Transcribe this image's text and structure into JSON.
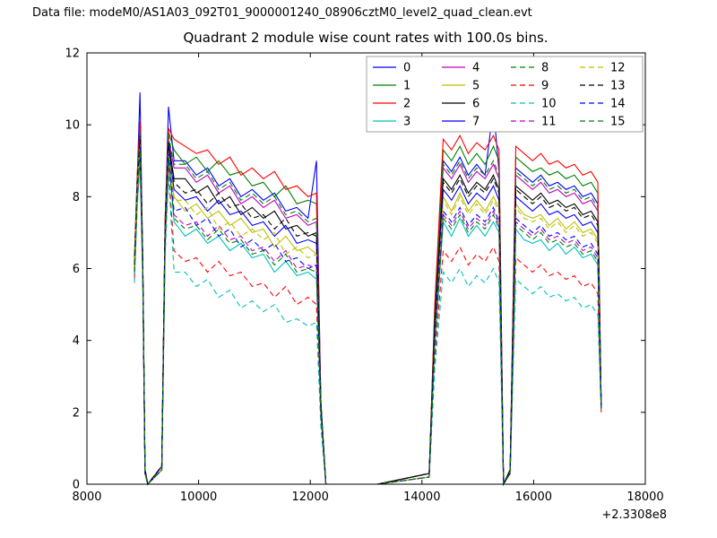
{
  "page": {
    "data_file_label": "Data file: modeM0/AS1A03_092T01_9000001240_08906cztM0_level2_quad_clean.evt"
  },
  "chart_data": {
    "type": "line",
    "title": "Quadrant 2 module wise count rates with 100.0s bins.",
    "xlabel": "",
    "ylabel": "",
    "xlim": [
      8000,
      18000
    ],
    "ylim": [
      0,
      12
    ],
    "x_ticks": [
      8000,
      10000,
      12000,
      14000,
      16000,
      18000
    ],
    "y_ticks": [
      0,
      2,
      4,
      6,
      8,
      10,
      12
    ],
    "x_offset_text": "+2.3308e8",
    "grid": false,
    "legend": {
      "position": "upper center",
      "columns": 4,
      "rows": 4
    },
    "colors": {
      "blue": "#0000ff",
      "green": "#008000",
      "red": "#ff0000",
      "cyan": "#00bfbf",
      "magenta": "#bf00bf",
      "yellow": "#bfbf00",
      "black": "#000000"
    },
    "x": [
      8850,
      8900,
      8950,
      9000,
      9040,
      9090,
      9340,
      9400,
      9460,
      9560,
      9760,
      9960,
      10160,
      10360,
      10560,
      10760,
      10960,
      11160,
      11360,
      11560,
      11760,
      11960,
      12110,
      12190,
      12280,
      13200,
      14130,
      14230,
      14380,
      14530,
      14680,
      14830,
      14980,
      15130,
      15280,
      15380,
      15460,
      15580,
      15680,
      15830,
      15980,
      16130,
      16280,
      16430,
      16580,
      16730,
      16880,
      17030,
      17150,
      17210
    ],
    "series": [
      {
        "name": "0",
        "color": "#0000ff",
        "style": "solid",
        "values": [
          6.2,
          8.5,
          10.9,
          6.2,
          0.4,
          0,
          0.5,
          7.2,
          10.5,
          9.0,
          9.0,
          8.6,
          8.8,
          8.3,
          8.5,
          8.0,
          8.2,
          7.9,
          8.1,
          7.6,
          7.7,
          7.4,
          9.0,
          2.3,
          0,
          0,
          0.3,
          4.7,
          9.0,
          8.7,
          9.1,
          8.6,
          8.9,
          8.6,
          10.5,
          8.7,
          0,
          0.4,
          8.8,
          8.6,
          8.4,
          8.6,
          8.3,
          8.4,
          8.2,
          8.3,
          8.0,
          8.1,
          7.8,
          2.2
        ]
      },
      {
        "name": "1",
        "color": "#008000",
        "style": "solid",
        "values": [
          6.2,
          8.5,
          9.9,
          6.2,
          0.4,
          0,
          0.5,
          7.3,
          9.8,
          9.3,
          8.9,
          9.1,
          8.7,
          9.0,
          8.6,
          8.7,
          8.3,
          8.4,
          8.0,
          8.3,
          7.8,
          7.9,
          7.8,
          2.3,
          0,
          0,
          0.3,
          4.9,
          9.3,
          9.0,
          9.4,
          8.9,
          9.2,
          8.9,
          9.4,
          9.0,
          0,
          0.4,
          9.1,
          8.9,
          8.7,
          8.8,
          8.6,
          8.7,
          8.5,
          8.6,
          8.3,
          8.4,
          8.1,
          2.2
        ]
      },
      {
        "name": "2",
        "color": "#ff0000",
        "style": "solid",
        "values": [
          6.3,
          8.6,
          10.1,
          6.3,
          0.4,
          0,
          0.5,
          7.4,
          9.9,
          9.6,
          9.4,
          9.2,
          9.3,
          8.9,
          9.1,
          8.6,
          8.8,
          8.5,
          8.7,
          8.2,
          8.3,
          8.0,
          8.1,
          2.3,
          0,
          0,
          0.3,
          5.0,
          9.6,
          9.3,
          9.7,
          9.2,
          9.5,
          9.3,
          9.7,
          9.3,
          0,
          0.4,
          9.4,
          9.2,
          9.0,
          9.2,
          8.9,
          9.0,
          8.8,
          8.9,
          8.6,
          8.7,
          8.4,
          2.2
        ]
      },
      {
        "name": "3",
        "color": "#00bfbf",
        "style": "solid",
        "values": [
          5.8,
          8.0,
          9.3,
          5.8,
          0.3,
          0,
          0.4,
          6.7,
          9.1,
          7.3,
          6.9,
          7.1,
          6.7,
          6.9,
          6.5,
          6.7,
          6.3,
          6.4,
          5.9,
          6.2,
          5.8,
          5.9,
          5.7,
          2.0,
          0,
          0,
          0.2,
          3.8,
          7.3,
          6.9,
          7.4,
          6.9,
          7.2,
          6.9,
          7.3,
          7.0,
          0,
          0.3,
          7.1,
          6.8,
          6.7,
          6.8,
          6.5,
          6.7,
          6.4,
          6.6,
          6.3,
          6.4,
          6.1,
          2.1
        ]
      },
      {
        "name": "4",
        "color": "#bf00bf",
        "style": "solid",
        "values": [
          6.1,
          8.4,
          9.8,
          6.1,
          0.4,
          0,
          0.5,
          7.2,
          9.6,
          8.8,
          8.8,
          8.4,
          8.6,
          8.1,
          8.3,
          7.8,
          8.0,
          7.7,
          7.9,
          7.4,
          7.5,
          7.2,
          7.3,
          2.2,
          0,
          0,
          0.3,
          4.6,
          8.8,
          8.5,
          8.9,
          8.4,
          8.7,
          8.5,
          8.9,
          8.5,
          0,
          0.4,
          8.6,
          8.4,
          8.2,
          8.4,
          8.1,
          8.2,
          8.0,
          8.1,
          7.8,
          7.9,
          7.6,
          2.2
        ]
      },
      {
        "name": "5",
        "color": "#bfbf00",
        "style": "solid",
        "values": [
          6.0,
          8.2,
          9.5,
          6.0,
          0.3,
          0,
          0.4,
          6.9,
          9.3,
          8.0,
          7.6,
          7.8,
          7.4,
          7.6,
          7.2,
          7.4,
          7.0,
          7.1,
          6.6,
          6.9,
          6.5,
          6.6,
          6.4,
          2.1,
          0,
          0,
          0.2,
          4.2,
          8.0,
          7.6,
          8.1,
          7.6,
          7.9,
          7.6,
          8.0,
          7.7,
          0,
          0.3,
          7.8,
          7.5,
          7.4,
          7.5,
          7.2,
          7.4,
          7.1,
          7.3,
          7.0,
          7.1,
          6.8,
          2.1
        ]
      },
      {
        "name": "6",
        "color": "#000000",
        "style": "solid",
        "values": [
          6.1,
          8.3,
          9.7,
          6.1,
          0.4,
          0,
          0.5,
          7.1,
          9.5,
          8.5,
          8.5,
          8.1,
          8.3,
          7.8,
          8.0,
          7.5,
          7.7,
          7.4,
          7.6,
          7.1,
          7.2,
          6.9,
          7.0,
          2.2,
          0,
          0,
          0.3,
          4.5,
          8.5,
          8.2,
          8.6,
          8.1,
          8.4,
          8.2,
          8.6,
          8.2,
          0,
          0.4,
          8.3,
          8.1,
          7.9,
          8.1,
          7.8,
          7.9,
          7.7,
          7.8,
          7.5,
          7.6,
          7.3,
          2.2
        ]
      },
      {
        "name": "7",
        "color": "#0000ff",
        "style": "solid",
        "values": [
          6.0,
          8.3,
          9.6,
          6.0,
          0.3,
          0,
          0.4,
          7.0,
          9.4,
          8.2,
          7.9,
          8.0,
          7.6,
          7.9,
          7.5,
          7.6,
          7.2,
          7.3,
          6.9,
          7.2,
          6.7,
          6.8,
          6.7,
          2.1,
          0,
          0,
          0.2,
          4.3,
          8.2,
          7.9,
          8.3,
          7.8,
          8.1,
          7.9,
          8.3,
          7.9,
          0,
          0.3,
          8.0,
          7.8,
          7.6,
          7.8,
          7.5,
          7.6,
          7.4,
          7.5,
          7.2,
          7.3,
          7.0,
          2.1
        ]
      },
      {
        "name": "8",
        "color": "#008000",
        "style": "dashed",
        "values": [
          6.2,
          8.4,
          9.8,
          6.2,
          0.4,
          0,
          0.5,
          7.2,
          9.7,
          8.9,
          8.9,
          8.5,
          8.7,
          8.2,
          8.4,
          7.9,
          8.1,
          7.8,
          8.0,
          7.5,
          7.6,
          7.3,
          7.4,
          2.2,
          0,
          0,
          0.3,
          4.7,
          8.9,
          8.6,
          9.0,
          8.5,
          8.8,
          8.6,
          9.0,
          8.6,
          0,
          0.4,
          8.7,
          8.5,
          8.3,
          8.5,
          8.2,
          8.3,
          8.1,
          8.2,
          7.9,
          8.0,
          7.7,
          2.2
        ]
      },
      {
        "name": "9",
        "color": "#ff0000",
        "style": "dashed",
        "values": [
          5.7,
          7.8,
          9.1,
          5.7,
          0.3,
          0,
          0.4,
          6.5,
          8.8,
          6.5,
          6.2,
          6.3,
          5.9,
          6.2,
          5.8,
          5.9,
          5.5,
          5.6,
          5.2,
          5.5,
          5.0,
          5.2,
          5.0,
          1.8,
          0,
          0,
          0.2,
          3.5,
          6.5,
          6.2,
          6.6,
          6.1,
          6.4,
          6.2,
          6.6,
          6.2,
          0,
          0.3,
          6.3,
          6.1,
          5.9,
          6.1,
          5.8,
          5.9,
          5.7,
          5.8,
          5.5,
          5.6,
          5.3,
          2.0
        ]
      },
      {
        "name": "10",
        "color": "#00bfbf",
        "style": "dashed",
        "values": [
          5.6,
          7.7,
          8.9,
          5.6,
          0.3,
          0,
          0.4,
          6.3,
          8.6,
          5.9,
          5.9,
          5.5,
          5.7,
          5.2,
          5.4,
          4.9,
          5.1,
          4.8,
          5.0,
          4.5,
          4.6,
          4.4,
          4.5,
          1.6,
          0,
          0,
          0.2,
          3.2,
          5.9,
          5.6,
          6.0,
          5.5,
          5.8,
          5.6,
          6.0,
          5.6,
          0,
          0.3,
          5.7,
          5.5,
          5.3,
          5.5,
          5.2,
          5.3,
          5.1,
          5.2,
          4.9,
          5.0,
          4.7,
          2.0
        ]
      },
      {
        "name": "11",
        "color": "#bf00bf",
        "style": "dashed",
        "values": [
          5.9,
          8.1,
          9.4,
          5.9,
          0.3,
          0,
          0.4,
          6.8,
          9.2,
          7.5,
          7.2,
          7.3,
          6.9,
          7.2,
          6.8,
          6.9,
          6.5,
          6.6,
          6.2,
          6.5,
          6.0,
          6.1,
          6.0,
          2.0,
          0,
          0,
          0.2,
          4.0,
          7.5,
          7.2,
          7.6,
          7.1,
          7.4,
          7.2,
          7.6,
          7.2,
          0,
          0.3,
          7.3,
          7.1,
          6.9,
          7.1,
          6.8,
          6.9,
          6.7,
          6.8,
          6.5,
          6.6,
          6.3,
          2.1
        ]
      },
      {
        "name": "12",
        "color": "#bfbf00",
        "style": "dashed",
        "values": [
          6.0,
          8.2,
          9.5,
          6.0,
          0.3,
          0,
          0.4,
          6.9,
          9.3,
          7.9,
          7.9,
          7.5,
          7.7,
          7.1,
          7.3,
          6.9,
          7.1,
          6.8,
          7.0,
          6.4,
          6.6,
          6.3,
          6.4,
          2.1,
          0,
          0,
          0.2,
          4.1,
          7.9,
          7.5,
          8.0,
          7.5,
          7.8,
          7.5,
          7.9,
          7.6,
          0,
          0.3,
          7.7,
          7.4,
          7.3,
          7.4,
          7.1,
          7.3,
          7.0,
          7.2,
          6.9,
          7.0,
          6.7,
          2.1
        ]
      },
      {
        "name": "13",
        "color": "#000000",
        "style": "dashed",
        "values": [
          6.1,
          8.3,
          9.6,
          6.1,
          0.4,
          0,
          0.5,
          7.0,
          9.5,
          8.4,
          8.1,
          8.2,
          7.8,
          8.1,
          7.7,
          7.8,
          7.4,
          7.5,
          7.1,
          7.4,
          6.9,
          7.0,
          6.9,
          2.2,
          0,
          0,
          0.3,
          4.4,
          8.4,
          8.1,
          8.5,
          8.0,
          8.3,
          8.1,
          8.5,
          8.1,
          0,
          0.4,
          8.2,
          8.0,
          7.8,
          8.0,
          7.7,
          7.8,
          7.6,
          7.7,
          7.4,
          7.5,
          7.2,
          2.2
        ]
      },
      {
        "name": "14",
        "color": "#0000ff",
        "style": "dashed",
        "values": [
          5.9,
          8.1,
          9.4,
          5.9,
          0.3,
          0,
          0.4,
          6.8,
          9.2,
          7.6,
          7.7,
          7.2,
          7.4,
          6.9,
          7.1,
          6.6,
          6.8,
          6.5,
          6.7,
          6.2,
          6.3,
          6.0,
          6.1,
          2.0,
          0,
          0,
          0.2,
          4.0,
          7.6,
          7.3,
          7.7,
          7.2,
          7.5,
          7.3,
          7.7,
          7.3,
          0,
          0.3,
          7.4,
          7.2,
          7.0,
          7.2,
          6.9,
          7.0,
          6.8,
          6.9,
          6.6,
          6.7,
          6.4,
          2.1
        ]
      },
      {
        "name": "15",
        "color": "#008000",
        "style": "dashed",
        "values": [
          5.9,
          8.0,
          9.3,
          5.9,
          0.3,
          0,
          0.4,
          6.7,
          9.1,
          7.4,
          7.1,
          7.2,
          6.8,
          7.1,
          6.7,
          6.8,
          6.4,
          6.5,
          6.1,
          6.4,
          5.9,
          6.0,
          5.9,
          2.0,
          0,
          0,
          0.2,
          3.9,
          7.4,
          7.1,
          7.5,
          7.0,
          7.3,
          7.1,
          7.5,
          7.1,
          0,
          0.3,
          7.2,
          7.0,
          6.8,
          7.0,
          6.7,
          6.8,
          6.6,
          6.7,
          6.4,
          6.5,
          6.2,
          2.1
        ]
      }
    ]
  }
}
